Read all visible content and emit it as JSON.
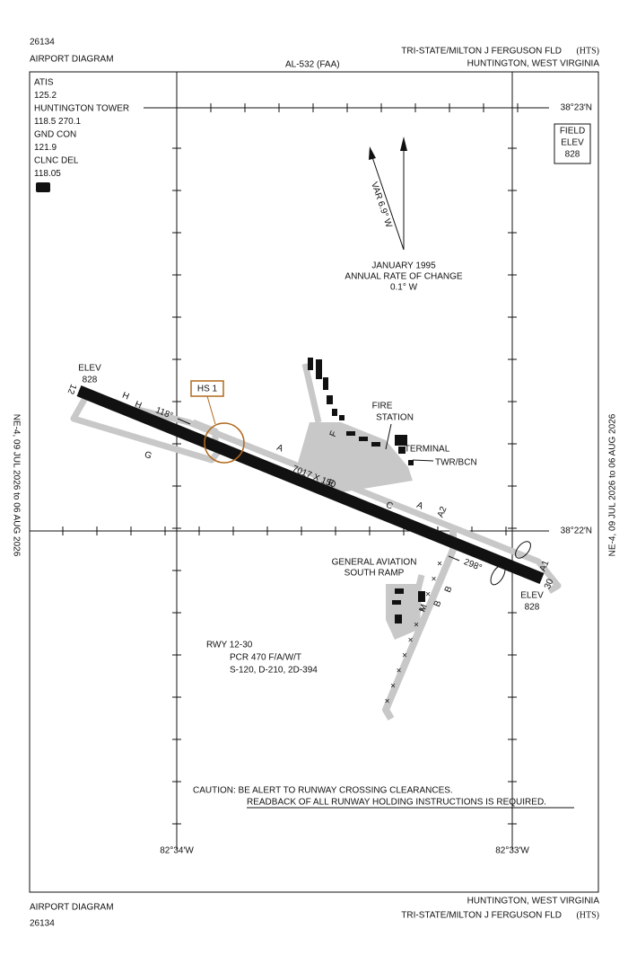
{
  "header": {
    "id": "26134",
    "title": "AIRPORT DIAGRAM",
    "doc": "AL-532 (FAA)",
    "airport": "TRI-STATE/MILTON J FERGUSON FLD",
    "code": "(HTS)",
    "city": "HUNTINGTON, WEST VIRGINIA"
  },
  "frequencies": [
    "ATIS",
    "125.2",
    "HUNTINGTON TOWER",
    "118.5  270.1",
    "GND CON",
    "121.9",
    "CLNC DEL",
    "118.05"
  ],
  "d_badge": "D",
  "field_elev": [
    "FIELD",
    "ELEV",
    "828"
  ],
  "margin_dates": "NE-4,  09 JUL 2026  to  06 AUG 2026",
  "lat_labels": [
    "38°23′N",
    "38°22′N"
  ],
  "lon_labels": [
    "82°34′W",
    "82°33′W"
  ],
  "magnetic": {
    "var": "VAR 6.9° W",
    "date": "JANUARY 1995",
    "change_label": "ANNUAL RATE OF CHANGE",
    "change": "0.1° W"
  },
  "runway": {
    "end_12": "12",
    "end_30": "30",
    "elev_12": [
      "ELEV",
      "828"
    ],
    "elev_30": [
      "ELEV",
      "828"
    ],
    "dims": "7017 X 150",
    "hdg_118": "118°",
    "hdg_298": "298°"
  },
  "hot_spot": "HS 1",
  "taxiway_labels": [
    "H",
    "H",
    "G",
    "A",
    "F",
    "E",
    "C",
    "A",
    "A2",
    "A1",
    "A",
    "B",
    "B",
    "M"
  ],
  "facilities": [
    "FIRE",
    "STATION",
    "TERMINAL",
    "TWR/BCN",
    "GENERAL AVIATION",
    "SOUTH RAMP"
  ],
  "runway_info": [
    "RWY 12-30",
    "PCR 470 F/A/W/T",
    "S-120, D-210, 2D-394"
  ],
  "caution": [
    "CAUTION: BE ALERT TO RUNWAY CROSSING CLEARANCES.",
    "READBACK OF ALL RUNWAY HOLDING INSTRUCTIONS IS REQUIRED."
  ]
}
